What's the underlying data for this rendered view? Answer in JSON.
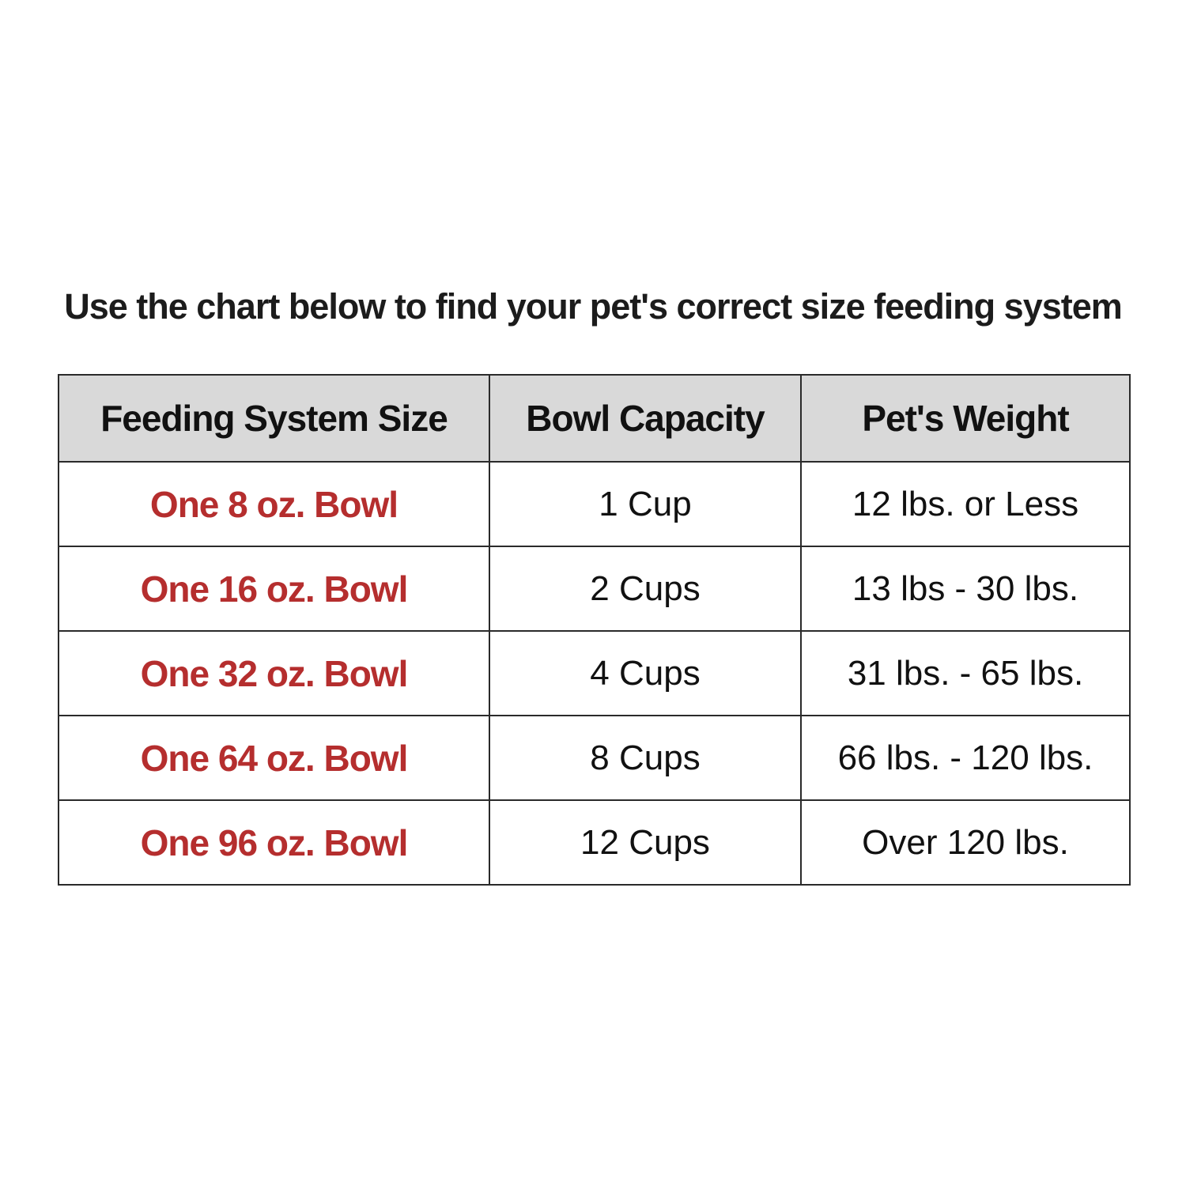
{
  "chart_data": {
    "type": "table",
    "title": "Use the chart below to find your pet's correct size feeding system",
    "columns": [
      "Feeding System Size",
      "Bowl Capacity",
      "Pet's Weight"
    ],
    "rows": [
      [
        "One 8 oz. Bowl",
        "1 Cup",
        "12 lbs. or Less"
      ],
      [
        "One 16 oz. Bowl",
        "2 Cups",
        "13 lbs - 30 lbs."
      ],
      [
        "One 32 oz. Bowl",
        "4 Cups",
        "31 lbs. - 65 lbs."
      ],
      [
        "One 64 oz. Bowl",
        "8 Cups",
        "66 lbs. - 120 lbs."
      ],
      [
        "One 96 oz. Bowl",
        "12 Cups",
        "Over 120 lbs."
      ]
    ],
    "layout": {
      "legend": "none",
      "grid": "full-borders",
      "header_row": true
    }
  },
  "colors": {
    "accent_red": "#b52e2e",
    "header_bg": "#d9d9d9",
    "border": "#2a2a2a",
    "text": "#111111",
    "background": "#ffffff"
  }
}
